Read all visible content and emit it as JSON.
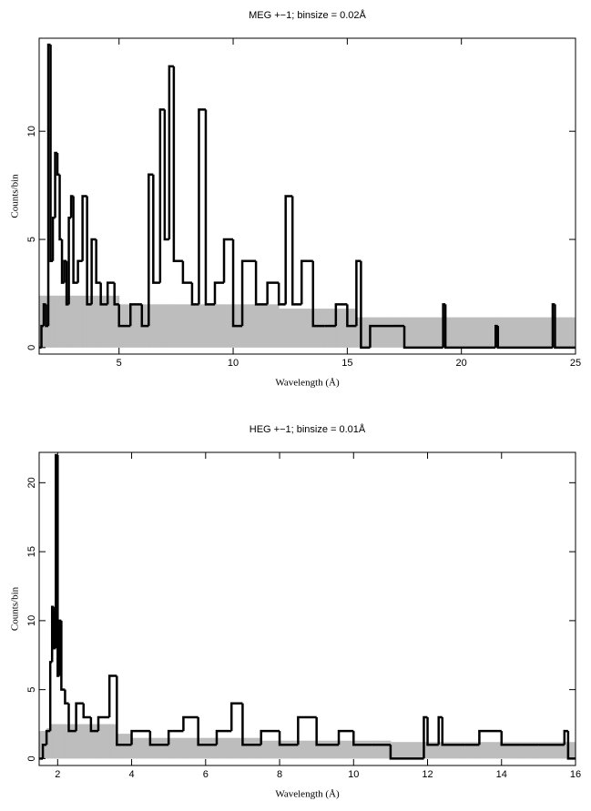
{
  "chart_data": [
    {
      "type": "step",
      "title": "MEG +−1; binsize = 0.02Å",
      "xlabel": "Wavelength (Å)",
      "ylabel": "Counts/bin",
      "x": [
        1.5,
        1.6,
        1.7,
        1.8,
        1.9,
        2.0,
        2.1,
        2.2,
        2.3,
        2.4,
        2.5,
        2.6,
        2.7,
        2.8,
        2.9,
        3.0,
        3.2,
        3.4,
        3.6,
        3.8,
        4.0,
        4.2,
        4.5,
        4.8,
        5.0,
        5.5,
        6.0,
        6.3,
        6.5,
        6.8,
        7.0,
        7.2,
        7.4,
        7.8,
        8.2,
        8.5,
        8.8,
        9.2,
        9.6,
        10.0,
        10.4,
        11.0,
        11.5,
        12.0,
        12.3,
        12.6,
        13.0,
        13.5,
        14.0,
        14.5,
        15.0,
        15.4,
        15.6,
        16.0,
        17.0,
        17.5,
        19.2,
        19.3,
        21.5,
        21.6,
        24.0,
        24.1
      ],
      "values": [
        0,
        1,
        2,
        1,
        14,
        4,
        6,
        9,
        8,
        5,
        3,
        4,
        2,
        6,
        7,
        3,
        4,
        7,
        2,
        5,
        3,
        2,
        3,
        2,
        1,
        2,
        1,
        8,
        3,
        11,
        5,
        13,
        4,
        3,
        2,
        11,
        2,
        3,
        5,
        1,
        4,
        2,
        3,
        2,
        7,
        2,
        4,
        1,
        1,
        2,
        1,
        4,
        0,
        1,
        1,
        0,
        2,
        0,
        1,
        0,
        2,
        0
      ],
      "band": [
        2.4,
        2.4,
        2.4,
        2.4,
        2.4,
        2.4,
        2.4,
        2.4,
        2.4,
        2.4,
        2.4,
        2.4,
        2.4,
        2.4,
        2.4,
        2.4,
        2.4,
        2.4,
        2.4,
        2.4,
        2.4,
        2.4,
        2.4,
        2.4,
        2.0,
        2.0,
        2.0,
        2.0,
        2.0,
        2.0,
        2.0,
        2.0,
        2.0,
        2.0,
        2.0,
        2.0,
        2.0,
        2.0,
        2.0,
        2.0,
        2.0,
        2.0,
        2.0,
        1.8,
        1.8,
        1.8,
        1.8,
        1.8,
        1.8,
        1.8,
        1.8,
        1.4,
        1.4,
        1.4,
        1.4,
        1.4,
        1.4,
        1.4,
        1.4,
        1.4,
        1.4,
        1.4
      ],
      "color": "#000000",
      "band_color": "#bdbdbd",
      "xlim": [
        1.5,
        25
      ],
      "ylim": [
        -0.3,
        14.3
      ],
      "xticks": [
        5,
        10,
        15,
        20,
        25
      ],
      "yticks": [
        0,
        5,
        10
      ]
    },
    {
      "type": "step",
      "title": "HEG +−1; binsize = 0.01Å",
      "xlabel": "Wavelength (Å)",
      "ylabel": "Counts/bin",
      "x": [
        1.5,
        1.6,
        1.7,
        1.8,
        1.85,
        1.9,
        1.95,
        2.0,
        2.05,
        2.1,
        2.2,
        2.3,
        2.5,
        2.7,
        2.9,
        3.1,
        3.4,
        3.6,
        4.0,
        4.5,
        5.0,
        5.4,
        5.8,
        6.3,
        6.7,
        7.0,
        7.5,
        8.0,
        8.5,
        9.0,
        9.6,
        10.0,
        10.5,
        11.0,
        11.9,
        12.0,
        12.3,
        12.4,
        13.0,
        13.4,
        14.0,
        14.5,
        15.0,
        15.7,
        15.8
      ],
      "values": [
        0,
        1,
        2,
        7,
        11,
        8,
        22,
        6,
        10,
        5,
        4,
        2,
        4,
        3,
        2,
        3,
        6,
        1,
        2,
        1,
        2,
        3,
        1,
        2,
        4,
        1,
        2,
        1,
        3,
        1,
        2,
        1,
        1,
        0,
        3,
        1,
        3,
        1,
        1,
        2,
        1,
        1,
        1,
        2,
        0
      ],
      "band": [
        2.0,
        2.0,
        2.2,
        2.5,
        2.5,
        2.5,
        2.5,
        2.5,
        2.5,
        2.5,
        2.5,
        2.5,
        2.5,
        2.5,
        2.5,
        2.5,
        2.5,
        1.8,
        1.5,
        1.5,
        1.5,
        1.5,
        1.5,
        1.5,
        1.5,
        1.5,
        1.3,
        1.3,
        1.3,
        1.3,
        1.3,
        1.3,
        1.3,
        1.2,
        1.2,
        1.2,
        1.2,
        1.2,
        1.2,
        1.2,
        1.2,
        1.2,
        1.2,
        1.2,
        1.2
      ],
      "color": "#000000",
      "band_color": "#bdbdbd",
      "xlim": [
        1.5,
        16
      ],
      "ylim": [
        -0.5,
        22.2
      ],
      "xticks": [
        2,
        4,
        6,
        8,
        10,
        12,
        14,
        16
      ],
      "yticks": [
        0,
        5,
        10,
        15,
        20
      ]
    }
  ]
}
